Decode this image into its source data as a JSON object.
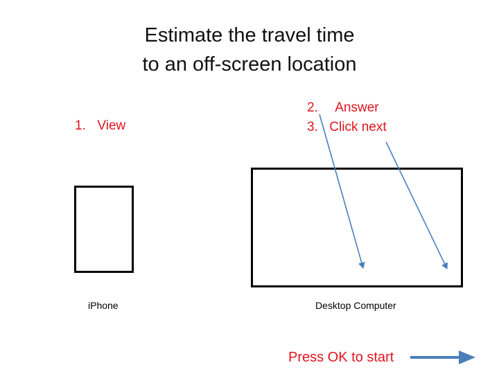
{
  "title": {
    "line1": "Estimate the travel time",
    "line2": "to an off-screen location"
  },
  "steps": {
    "view": {
      "number": "1.",
      "label": "View"
    },
    "answer": {
      "number": "2.",
      "label": "Answer"
    },
    "next": {
      "number": "3.",
      "label": "Click next"
    }
  },
  "devices": {
    "iphone": "iPhone",
    "desktop": "Desktop Computer"
  },
  "start_prompt": "Press OK to start",
  "colors": {
    "step_text": "#e0141e",
    "arrow": "#4a7ebb",
    "outline": "#000000",
    "title_text": "#111111"
  },
  "icons": {
    "answer_pointer": "arrow-pointer-icon",
    "next_pointer": "arrow-pointer-icon",
    "start": "right-arrow-icon"
  }
}
